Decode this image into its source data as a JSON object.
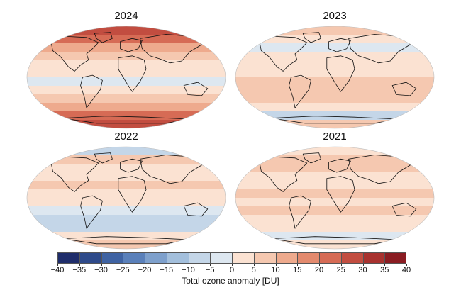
{
  "panels": [
    {
      "id": "p2024",
      "title": "2024",
      "bands": [
        28,
        22,
        12,
        8,
        4,
        2,
        -2,
        4,
        6,
        10,
        20,
        26
      ],
      "hot_north": true
    },
    {
      "id": "p2023",
      "title": "2023",
      "bands": [
        6,
        2,
        -4,
        0,
        2,
        4,
        6,
        8,
        6,
        4,
        -6,
        6
      ],
      "hot_north": false
    },
    {
      "id": "p2022",
      "title": "2022",
      "bands": [
        -8,
        6,
        4,
        2,
        6,
        4,
        2,
        -2,
        -6,
        -8,
        2,
        6
      ],
      "hot_north": false
    },
    {
      "id": "p2021",
      "title": "2021",
      "bands": [
        4,
        8,
        6,
        2,
        4,
        6,
        4,
        6,
        4,
        2,
        -2,
        4
      ],
      "hot_north": false
    }
  ],
  "colorbar": {
    "title": "Total ozone anomaly [DU]",
    "ticks": [
      "−40",
      "−35",
      "−30",
      "−25",
      "−20",
      "−15",
      "−10",
      "−5",
      "0",
      "5",
      "10",
      "15",
      "20",
      "25",
      "30",
      "35",
      "40"
    ],
    "colors": [
      "#1f2d6b",
      "#2e4a8a",
      "#3f63a3",
      "#5a80ba",
      "#7ea0cc",
      "#a3bfdc",
      "#c4d6e8",
      "#dde7f0",
      "#fbe2d2",
      "#f5c8b0",
      "#eeaa8d",
      "#e38a6e",
      "#d66b55",
      "#c24d40",
      "#a8322f",
      "#8a1c22"
    ]
  }
}
